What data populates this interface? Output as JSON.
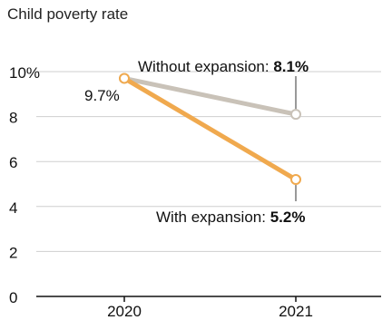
{
  "chart_data": {
    "type": "line",
    "title": "Child poverty rate",
    "x": [
      "2020",
      "2021"
    ],
    "ylim": [
      0,
      10
    ],
    "y_ticks": [
      "0",
      "2",
      "4",
      "6",
      "8",
      "10%"
    ],
    "grid": true,
    "series": [
      {
        "key": "without",
        "values": [
          9.7,
          8.1
        ],
        "color": "#c9c2b8"
      },
      {
        "key": "with",
        "values": [
          9.7,
          5.2
        ],
        "color": "#f0a94e"
      }
    ],
    "annotations": {
      "start_value": "9.7%",
      "without_label": "Without expansion: ",
      "without_value": "8.1%",
      "with_label": "With expansion: ",
      "with_value": "5.2%"
    }
  }
}
